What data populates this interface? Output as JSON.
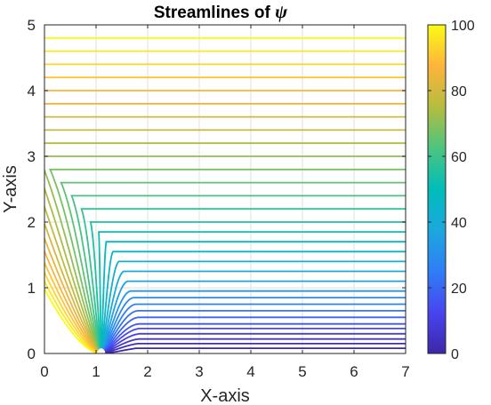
{
  "chart_data": {
    "type": "line",
    "title": "Streamlines of",
    "title_symbol": "ψ",
    "xlabel": "X-axis",
    "ylabel": "Y-axis",
    "xlim": [
      0,
      7
    ],
    "ylim": [
      0,
      5
    ],
    "xticks": [
      "0",
      "1",
      "2",
      "3",
      "4",
      "5",
      "6",
      "7"
    ],
    "yticks": [
      "0",
      "1",
      "2",
      "3",
      "4",
      "5"
    ],
    "grid": true,
    "source_point": [
      1.1,
      0
    ],
    "streamline_count": 32,
    "streamline_asymptotes_y": [
      4.8,
      4.6,
      4.4,
      4.2,
      4.0,
      3.8,
      3.6,
      3.4,
      3.2,
      3.0,
      2.8,
      2.6,
      2.4,
      2.2,
      2.0,
      1.85,
      1.7,
      1.55,
      1.4,
      1.25,
      1.1,
      0.95,
      0.85,
      0.75,
      0.65,
      0.55,
      0.45,
      0.38,
      0.3,
      0.22,
      0.15,
      0.08
    ],
    "colorbar": {
      "colormap": "parula",
      "range": [
        0,
        100
      ],
      "ticks": [
        "0",
        "20",
        "40",
        "60",
        "80",
        "100"
      ]
    }
  }
}
